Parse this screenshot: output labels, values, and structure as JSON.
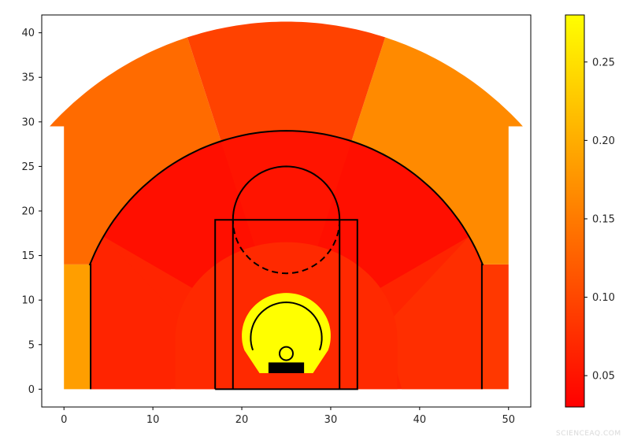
{
  "chart_data": {
    "type": "heatmap",
    "title": "",
    "xlabel": "",
    "ylabel": "",
    "xlim": [
      -2.5,
      52.5
    ],
    "ylim": [
      -2,
      42
    ],
    "xticks": [
      0,
      10,
      20,
      30,
      40,
      50
    ],
    "yticks": [
      0,
      5,
      10,
      15,
      20,
      25,
      30,
      35,
      40
    ],
    "colorbar": {
      "range": [
        0.03,
        0.28
      ],
      "ticks": [
        0.05,
        0.1,
        0.15,
        0.2,
        0.25
      ],
      "tick_labels": [
        "0.05",
        "0.10",
        "0.15",
        "0.20",
        "0.25"
      ],
      "colormap": "autumn"
    },
    "zones": [
      {
        "name": "restricted-area",
        "value": 0.28
      },
      {
        "name": "paint-non-ra",
        "value": 0.07
      },
      {
        "name": "mid-left-baseline",
        "value": 0.065
      },
      {
        "name": "mid-left-wing",
        "value": 0.045
      },
      {
        "name": "mid-center",
        "value": 0.05
      },
      {
        "name": "mid-right-wing",
        "value": 0.045
      },
      {
        "name": "mid-right-baseline",
        "value": 0.075
      },
      {
        "name": "corner-three-left",
        "value": 0.185
      },
      {
        "name": "corner-three-right",
        "value": 0.085
      },
      {
        "name": "above-break-three-left",
        "value": 0.135
      },
      {
        "name": "above-break-three-center",
        "value": 0.095
      },
      {
        "name": "above-break-three-right",
        "value": 0.165
      }
    ]
  },
  "watermark": "SCIENCEAQ.COM"
}
